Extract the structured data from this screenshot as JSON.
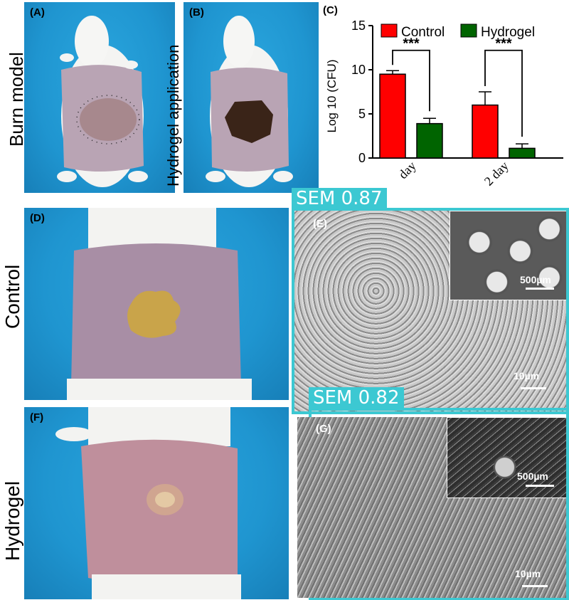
{
  "side_labels": {
    "burn_model": "Burn model",
    "hydrogel_application": "Hydrogel application",
    "control": "Control",
    "hydrogel": "Hydrogel"
  },
  "panels": {
    "a": "(A)",
    "b": "(B)",
    "c": "(C)",
    "d": "(D)",
    "e": "(E)",
    "f": "(F)",
    "g": "(G)"
  },
  "sem_tags": {
    "top": "SEM  0.87",
    "bottom": "SEM  0.82"
  },
  "scale_bars": {
    "e_inset": "500µm",
    "e_main": "10µm",
    "g_inset": "500µm",
    "g_main": "10µm"
  },
  "colors": {
    "control": "#ff0000",
    "hydrogel": "#006400",
    "accent": "#3cc8d2"
  },
  "chart_data": {
    "type": "bar",
    "ylabel": "Log 10 (CFU)",
    "categories": [
      "day",
      "2 day"
    ],
    "series": [
      {
        "name": "Control",
        "values": [
          9.5,
          6.0
        ],
        "errors": [
          0.4,
          1.5
        ]
      },
      {
        "name": "Hydrogel",
        "values": [
          3.9,
          1.1
        ],
        "errors": [
          0.6,
          0.5
        ]
      }
    ],
    "ylim": [
      0,
      15
    ],
    "yticks": [
      "0",
      "5",
      "10",
      "15"
    ],
    "significance": [
      "***",
      "***"
    ],
    "legend_placement": "top"
  }
}
